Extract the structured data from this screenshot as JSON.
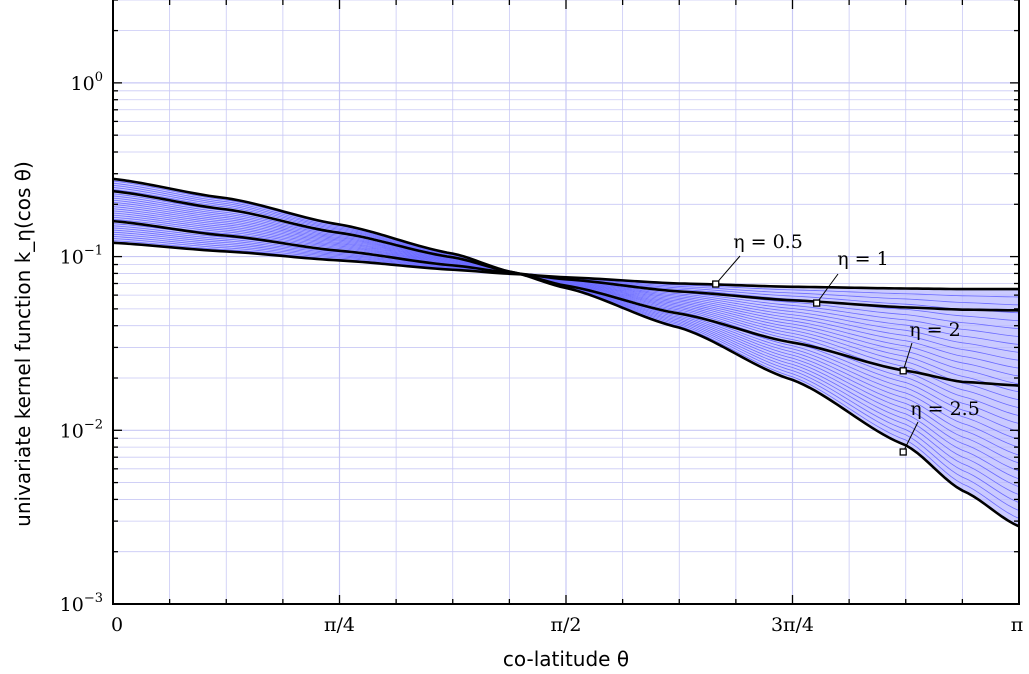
{
  "chart_data": {
    "type": "line",
    "xlabel": "co-latitude θ",
    "ylabel": "univariate kernel function k_η(cos θ)",
    "xscale": "linear",
    "yscale": "log",
    "xlim": [
      0,
      3.14159
    ],
    "ylim": [
      0.001,
      3.0
    ],
    "grid": true,
    "x_ticks": [
      {
        "value": 0,
        "label": "0"
      },
      {
        "value": 0.7854,
        "label": "π/4"
      },
      {
        "value": 1.5708,
        "label": "π/2"
      },
      {
        "value": 2.3562,
        "label": "3π/4"
      },
      {
        "value": 3.14159,
        "label": "π"
      }
    ],
    "y_ticks": [
      {
        "value": 0.001,
        "base": "10",
        "exp": "−3"
      },
      {
        "value": 0.01,
        "base": "10",
        "exp": "−2"
      },
      {
        "value": 0.1,
        "base": "10",
        "exp": "−1"
      },
      {
        "value": 1,
        "base": "10",
        "exp": "0"
      }
    ],
    "colors": {
      "family": "#6b6bff",
      "fill": "#b8b8ff",
      "grid": "#c9c9f5",
      "highlight": "#000000"
    },
    "x": [
      0,
      0.3927,
      0.7854,
      1.1781,
      1.3823,
      1.5708,
      1.9635,
      2.3562,
      2.7489,
      2.9452,
      3.14159
    ],
    "series": [
      {
        "name": "η = 0.5",
        "values": [
          0.12,
          0.107,
          0.095,
          0.084,
          0.0795,
          0.076,
          0.07,
          0.067,
          0.0655,
          0.065,
          0.065
        ],
        "marker_x": 2.09,
        "marker_y": 0.0695
      },
      {
        "name": "η = 1",
        "values": [
          0.16,
          0.132,
          0.108,
          0.089,
          0.0805,
          0.074,
          0.063,
          0.056,
          0.051,
          0.0495,
          0.049
        ],
        "marker_x": 2.44,
        "marker_y": 0.054
      },
      {
        "name": "η = 2",
        "values": [
          0.238,
          0.187,
          0.137,
          0.099,
          0.0815,
          0.068,
          0.047,
          0.032,
          0.022,
          0.019,
          0.0181
        ],
        "marker_x": 2.74,
        "marker_y": 0.022
      },
      {
        "name": "η = 2.5",
        "values": [
          0.28,
          0.217,
          0.153,
          0.104,
          0.0815,
          0.066,
          0.039,
          0.0195,
          0.0082,
          0.0045,
          0.0028
        ],
        "marker_x": 2.74,
        "marker_y": 0.0075
      }
    ]
  }
}
